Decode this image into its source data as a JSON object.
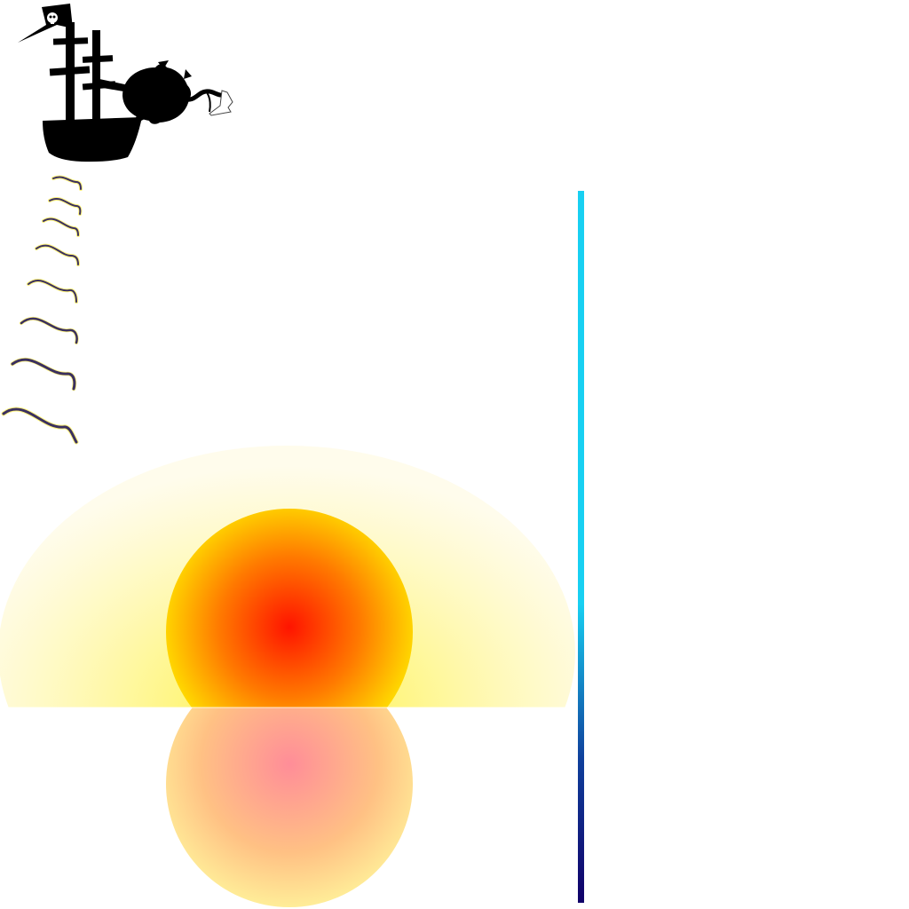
{
  "scene": {
    "background_color": "#ffffff",
    "elements": [
      "pirate-ship",
      "cannonball",
      "rope",
      "scroll",
      "wind-lines",
      "sun",
      "sun-glow",
      "sun-reflection",
      "horizon-line",
      "blue-depth-bar"
    ]
  },
  "palette": {
    "ship": "#000000",
    "flag": "#000000",
    "skull": "#ffffff",
    "wind_dark": "#3b3060",
    "wind_light": "#fff47a",
    "sun_core": "#ff1a00",
    "sun_mid": "#ff8c00",
    "sun_edge": "#ffe600",
    "glow": "#fff36b",
    "reflection_core": "#ff8f98",
    "reflection_edge": "#ffee90",
    "bar_top": "#18d0f2",
    "bar_bottom": "#100068"
  },
  "icons": {
    "flag": "skull-flag-icon",
    "ship": "ship-icon",
    "cannonball": "cannonball-icon",
    "scroll": "scroll-icon"
  }
}
